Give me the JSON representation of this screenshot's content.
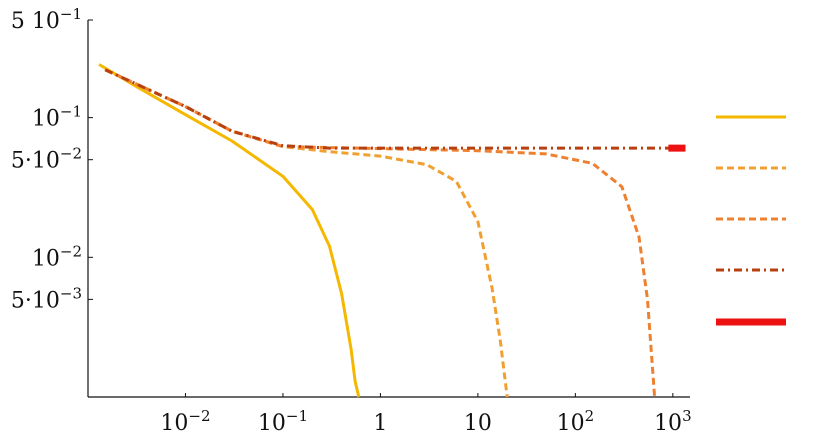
{
  "chart_data": {
    "type": "line",
    "title": "",
    "xlabel": "",
    "ylabel": "",
    "xscale": "log",
    "yscale": "log",
    "xlim": [
      0.001,
      1500
    ],
    "ylim": [
      0.001,
      0.5
    ],
    "grid": false,
    "legend": {
      "position": "right",
      "entries_labeled": false
    },
    "x_ticks": [
      {
        "value": 0.01,
        "base": "10",
        "exp": "−2"
      },
      {
        "value": 0.1,
        "base": "10",
        "exp": "−1"
      },
      {
        "value": 1,
        "base": "1",
        "exp": ""
      },
      {
        "value": 10,
        "base": "10",
        "exp": ""
      },
      {
        "value": 100,
        "base": "10",
        "exp": "2"
      },
      {
        "value": 1000,
        "base": "10",
        "exp": "3"
      }
    ],
    "y_ticks": [
      {
        "value": 0.5,
        "base": "5 10",
        "exp": "−1"
      },
      {
        "value": 0.1,
        "base": "10",
        "exp": "−1"
      },
      {
        "value": 0.05,
        "base": "5·10",
        "exp": "−2"
      },
      {
        "value": 0.01,
        "base": "10",
        "exp": "−2"
      },
      {
        "value": 0.005,
        "base": "5·10",
        "exp": "−3"
      }
    ],
    "series": [
      {
        "color": "#F5B800",
        "dash": "solid",
        "width": 3,
        "x": [
          0.0013,
          0.003,
          0.01,
          0.03,
          0.1,
          0.2,
          0.3,
          0.4,
          0.5,
          0.55,
          0.6
        ],
        "y": [
          0.24,
          0.17,
          0.105,
          0.068,
          0.038,
          0.022,
          0.012,
          0.0055,
          0.0022,
          0.0013,
          0.001
        ]
      },
      {
        "color": "#F0A030",
        "dash": "7,4",
        "width": 3,
        "x": [
          0.0015,
          0.01,
          0.03,
          0.1,
          0.3,
          1,
          3,
          6,
          10,
          14,
          17,
          20
        ],
        "y": [
          0.22,
          0.12,
          0.08,
          0.062,
          0.057,
          0.053,
          0.046,
          0.035,
          0.018,
          0.006,
          0.0025,
          0.001
        ]
      },
      {
        "color": "#EE8030",
        "dash": "7,4",
        "width": 3,
        "x": [
          0.0015,
          0.01,
          0.03,
          0.1,
          1,
          10,
          50,
          150,
          300,
          450,
          550,
          650
        ],
        "y": [
          0.22,
          0.12,
          0.08,
          0.062,
          0.06,
          0.058,
          0.055,
          0.047,
          0.032,
          0.014,
          0.005,
          0.001
        ]
      },
      {
        "color": "#B84010",
        "dash": "8,4,2,4",
        "width": 3,
        "x": [
          0.0015,
          0.01,
          0.03,
          0.1,
          0.3,
          1,
          10,
          100,
          1000
        ],
        "y": [
          0.22,
          0.12,
          0.08,
          0.063,
          0.0605,
          0.0605,
          0.0605,
          0.0605,
          0.0605
        ]
      },
      {
        "color": "#EE1111",
        "dash": "solid",
        "width": 7,
        "x": [
          900,
          1350
        ],
        "y": [
          0.0605,
          0.0605
        ]
      }
    ]
  }
}
